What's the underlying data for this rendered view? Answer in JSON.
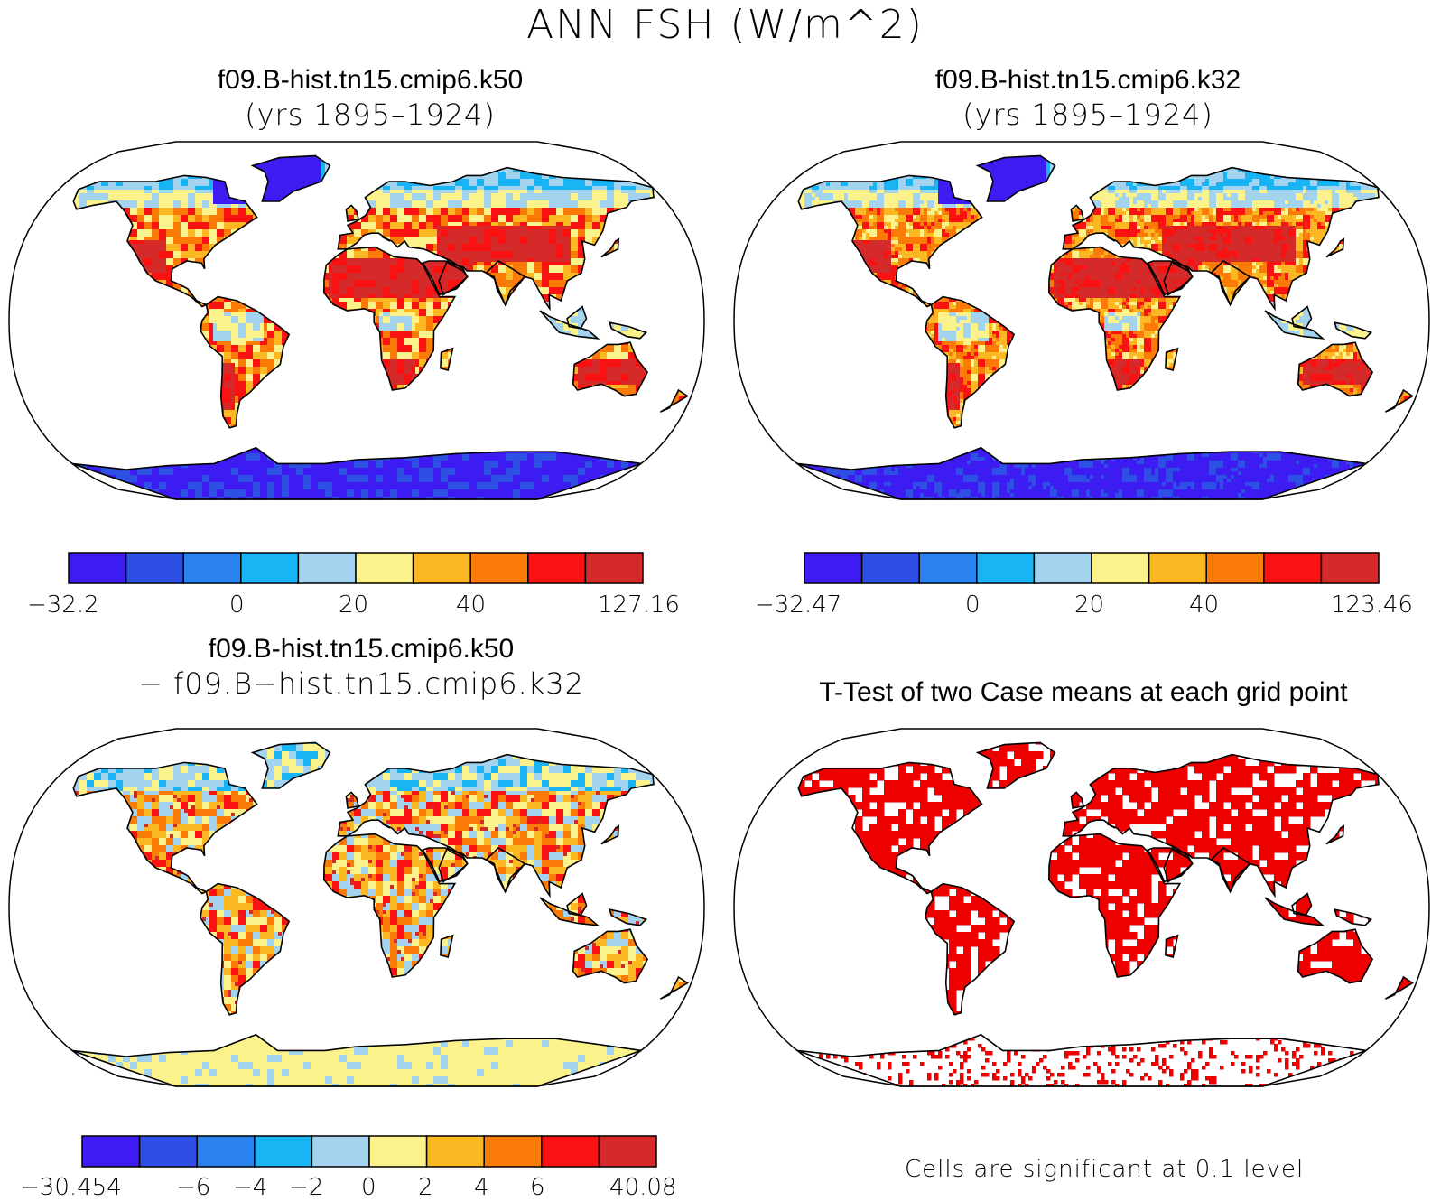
{
  "title": "ANN FSH (W/m^2)",
  "panels": [
    {
      "id": "p1",
      "title_line1": "f09.B-hist.tn15.cmip6.k50",
      "title_line2": "(yrs 1895–1924)",
      "colorbar": {
        "colors": [
          "#3c1cf0",
          "#2d4fe4",
          "#2a82ee",
          "#18b4f4",
          "#a3d3ee",
          "#fbf28c",
          "#fbb822",
          "#fb7b08",
          "#f91212",
          "#d42a2a"
        ],
        "labels": [
          "−32.2",
          "0",
          "20",
          "40",
          "127.16"
        ]
      }
    },
    {
      "id": "p2",
      "title_line1": "f09.B-hist.tn15.cmip6.k32",
      "title_line2": "(yrs 1895–1924)",
      "colorbar": {
        "colors": [
          "#3c1cf0",
          "#2d4fe4",
          "#2a82ee",
          "#18b4f4",
          "#a3d3ee",
          "#fbf28c",
          "#fbb822",
          "#fb7b08",
          "#f91212",
          "#d42a2a"
        ],
        "labels": [
          "−32.47",
          "0",
          "20",
          "40",
          "123.46"
        ]
      }
    },
    {
      "id": "p3",
      "title_line1": "f09.B-hist.tn15.cmip6.k50",
      "title_line2": "− f09.B−hist.tn15.cmip6.k32",
      "colorbar": {
        "colors": [
          "#3c1cf0",
          "#2d4fe4",
          "#2a82ee",
          "#18b4f4",
          "#a3d3ee",
          "#fbf28c",
          "#fbb822",
          "#fb7b08",
          "#f91212",
          "#d42a2a"
        ],
        "labels": [
          "−30.454",
          "−6",
          "−4",
          "−2",
          "0",
          "2",
          "4",
          "6",
          "40.08"
        ]
      }
    },
    {
      "id": "p4",
      "title_line1": "T-Test of two Case means at each grid point",
      "note": "Cells are significant at 0.1 level",
      "sig_color": "#ee0000"
    }
  ]
}
